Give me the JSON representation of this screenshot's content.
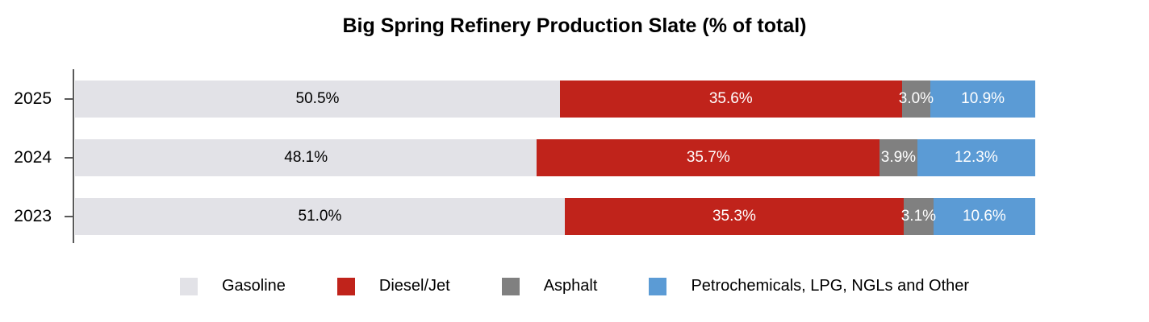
{
  "chart_data": {
    "type": "bar",
    "stacked": true,
    "orientation": "horizontal",
    "title": "Big Spring Refinery Production Slate (% of total)",
    "categories": [
      "2025",
      "2024",
      "2023"
    ],
    "series": [
      {
        "name": "Gasoline",
        "color": "#e2e2e7",
        "label_color": "#000000",
        "values": [
          50.5,
          48.1,
          51.0
        ],
        "value_labels": [
          "50.5%",
          "48.1%",
          "51.0%"
        ]
      },
      {
        "name": "Diesel/Jet",
        "color": "#c0231b",
        "label_color": "#ffffff",
        "values": [
          35.6,
          35.7,
          35.3
        ],
        "value_labels": [
          "35.6%",
          "35.7%",
          "35.3%"
        ]
      },
      {
        "name": "Asphalt",
        "color": "#808080",
        "label_color": "#ffffff",
        "values": [
          3.0,
          3.9,
          3.1
        ],
        "value_labels": [
          "3.0%",
          "3.9%",
          "3.1%"
        ]
      },
      {
        "name": "Petrochemicals, LPG, NGLs and Other",
        "color": "#5b9bd5",
        "label_color": "#ffffff",
        "values": [
          10.9,
          12.3,
          10.6
        ],
        "value_labels": [
          "10.9%",
          "12.3%",
          "10.6%"
        ]
      }
    ],
    "xlim": [
      0,
      100
    ],
    "value_suffix": "%",
    "grid": false,
    "legend_position": "bottom",
    "axis_color": "#595959"
  }
}
